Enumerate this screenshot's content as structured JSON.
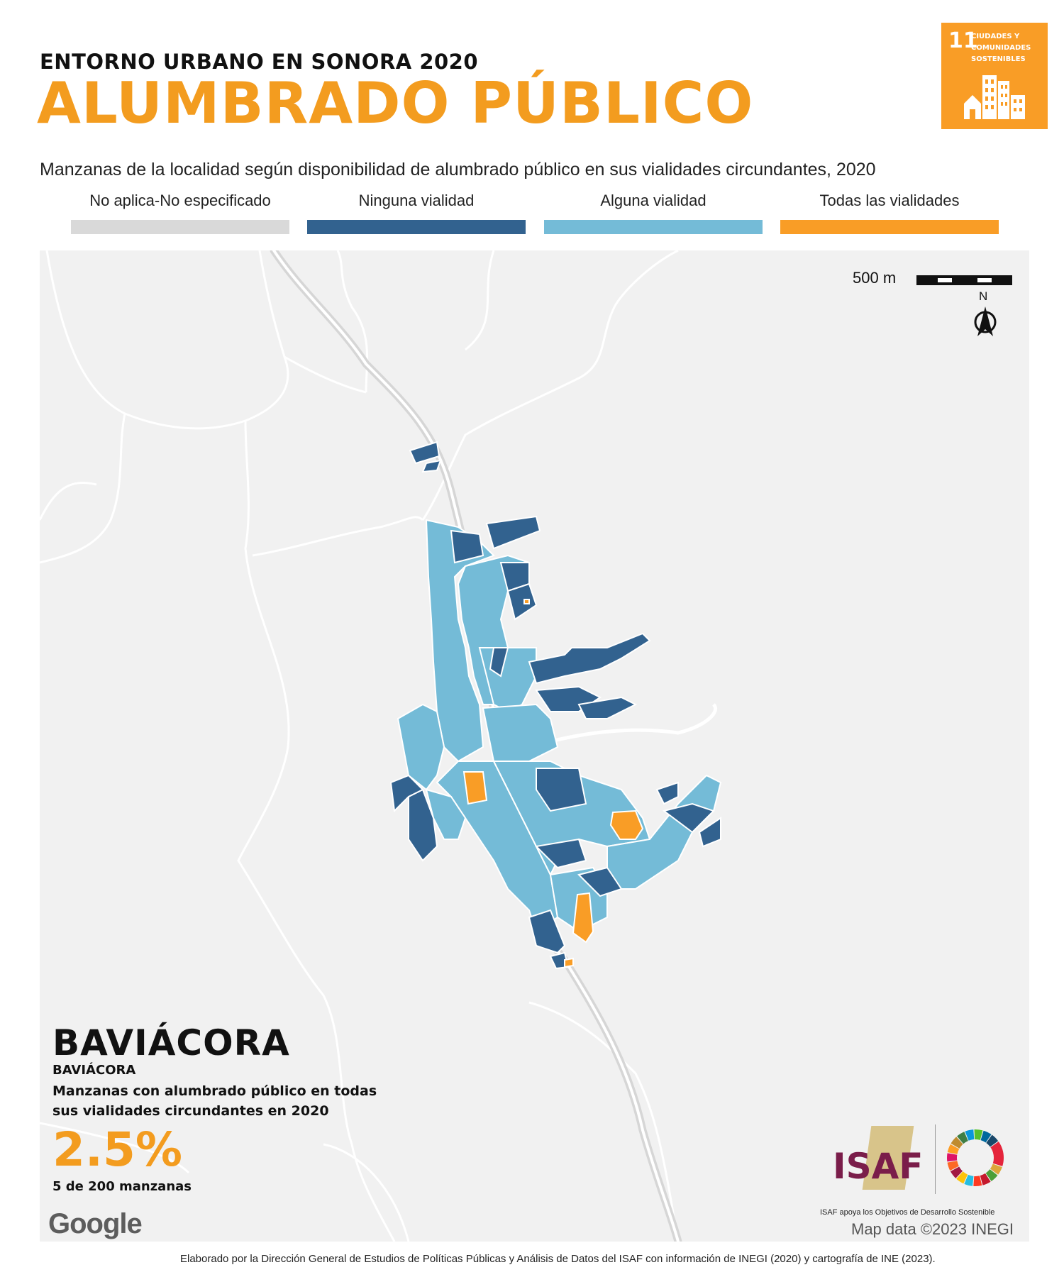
{
  "header": {
    "kicker": "ENTORNO URBANO EN SONORA 2020",
    "title": "ALUMBRADO PÚBLICO",
    "subtitle": "Manzanas de la localidad según disponibilidad de alumbrado público en sus vialidades circundantes, 2020"
  },
  "sdg_badge": {
    "number": "11",
    "text": "CIUDADES Y COMUNIDADES SOSTENIBLES",
    "color": "#f99d26"
  },
  "legend": [
    {
      "label": "No aplica-No especificado",
      "color": "#d9d9d9"
    },
    {
      "label": "Ninguna vialidad",
      "color": "#32628f"
    },
    {
      "label": "Alguna vialidad",
      "color": "#74bbd7"
    },
    {
      "label": "Todas las vialidades",
      "color": "#f99d26"
    }
  ],
  "map": {
    "scale_label": "500 m",
    "north_label": "N",
    "attribution": "Map data ©2023 INEGI",
    "provider_logo": "Google",
    "background": "#f1f1f1",
    "road_color": "#ffffff",
    "highway_color": "#dcdcdc"
  },
  "stats": {
    "municipality": "BAVIÁCORA",
    "locality": "BAVIÁCORA",
    "description": "Manzanas con alumbrado público en todas sus vialidades circundantes en 2020",
    "percentage": "2.5%",
    "count_text": "5 de 200 manzanas"
  },
  "logos": {
    "isaf": "ISAF",
    "tagline": "ISAF apoya los Objetivos de Desarrollo Sostenible"
  },
  "footer": "Elaborado por la Dirección General de Estudios de Políticas Públicas y Análisis de Datos del ISAF con información de INEGI (2020) y cartografía de INE (2023)."
}
